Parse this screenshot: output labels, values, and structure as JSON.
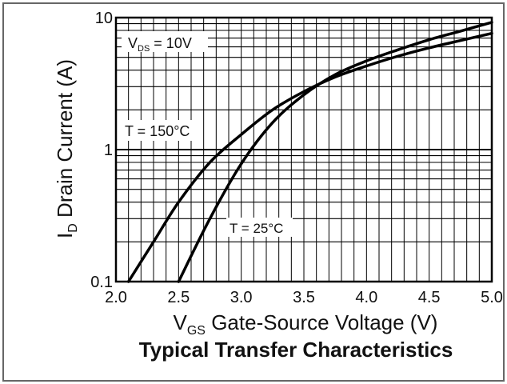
{
  "chart_data": {
    "type": "line",
    "title": "Typical Transfer Characteristics",
    "xlabel": {
      "main": "V",
      "sub": "GS",
      "rest": " Gate-Source Voltage (V)"
    },
    "ylabel": {
      "main": "I",
      "sub": "D",
      "rest": " Drain Current (A)"
    },
    "x_ticks": [
      "2.0",
      "2.5",
      "3.0",
      "3.5",
      "4.0",
      "4.5",
      "5.0"
    ],
    "y_ticks": [
      "0.1",
      "1",
      "10"
    ],
    "xlim": [
      2.0,
      5.0
    ],
    "ylim": [
      0.1,
      10
    ],
    "y_scale": "log",
    "grid": true,
    "annotations": {
      "vds": {
        "main": "V",
        "sub": "DS",
        "rest": " = 10V"
      },
      "t150": "T = 150°C",
      "t25": "T = 25°C"
    },
    "series": [
      {
        "name": "T = 150°C",
        "x": [
          2.1,
          2.3,
          2.5,
          2.75,
          3.0,
          3.25,
          3.5,
          3.75,
          4.0,
          4.25,
          4.5,
          4.75,
          5.0
        ],
        "y": [
          0.1,
          0.2,
          0.4,
          0.8,
          1.3,
          2.0,
          2.75,
          3.55,
          4.3,
          5.1,
          5.9,
          6.7,
          7.6
        ]
      },
      {
        "name": "T = 25°C",
        "x": [
          2.5,
          2.75,
          3.0,
          3.25,
          3.5,
          3.75,
          4.0,
          4.25,
          4.5,
          4.75,
          5.0
        ],
        "y": [
          0.1,
          0.3,
          0.78,
          1.6,
          2.6,
          3.7,
          4.7,
          5.7,
          6.8,
          7.9,
          9.2
        ]
      }
    ]
  }
}
